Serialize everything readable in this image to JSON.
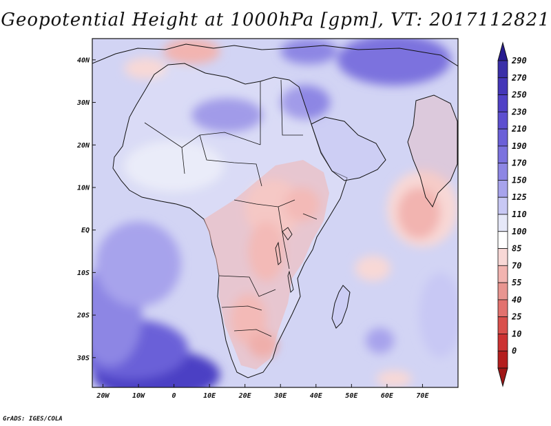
{
  "title": "Geopotential Height at 1000hPa [gpm], VT: 2017112821",
  "credit": "GrADS: IGES/COLA",
  "map": {
    "lon_range": [
      -23,
      80
    ],
    "lat_range": [
      -37,
      45
    ],
    "lat_ticks": [
      {
        "value": 40,
        "label": "40N"
      },
      {
        "value": 30,
        "label": "30N"
      },
      {
        "value": 20,
        "label": "20N"
      },
      {
        "value": 10,
        "label": "10N"
      },
      {
        "value": 0,
        "label": "EQ"
      },
      {
        "value": -10,
        "label": "10S"
      },
      {
        "value": -20,
        "label": "20S"
      },
      {
        "value": -30,
        "label": "30S"
      }
    ],
    "lon_ticks": [
      {
        "value": -20,
        "label": "20W"
      },
      {
        "value": -10,
        "label": "10W"
      },
      {
        "value": 0,
        "label": "0"
      },
      {
        "value": 10,
        "label": "10E"
      },
      {
        "value": 20,
        "label": "20E"
      },
      {
        "value": 30,
        "label": "30E"
      },
      {
        "value": 40,
        "label": "40E"
      },
      {
        "value": 50,
        "label": "50E"
      },
      {
        "value": 60,
        "label": "60E"
      },
      {
        "value": 70,
        "label": "70E"
      }
    ],
    "background_color": "#d2d4f4"
  },
  "colorbar": {
    "levels": [
      "290",
      "270",
      "250",
      "230",
      "210",
      "190",
      "170",
      "150",
      "125",
      "110",
      "100",
      "85",
      "70",
      "55",
      "40",
      "25",
      "10",
      "0"
    ],
    "colors": [
      "#3a2fa8",
      "#4436b8",
      "#5041c6",
      "#5d4fd0",
      "#6b60d8",
      "#7b72de",
      "#8d86e4",
      "#a7a3ec",
      "#c8c8f4",
      "#e6e8f8",
      "#ffffff",
      "#f8d8d6",
      "#f2b4b0",
      "#e89590",
      "#e2726e",
      "#d9504c",
      "#cc3232",
      "#b41e1e"
    ],
    "top_arrow_color": "#281c90",
    "bottom_arrow_color": "#a01616"
  },
  "field_blobs": [
    {
      "lon": -5,
      "lat": -34,
      "rx": 18,
      "ry": 6,
      "color": "#4b3fc4"
    },
    {
      "lon": -12,
      "lat": -28,
      "rx": 16,
      "ry": 7,
      "color": "#6b60d8"
    },
    {
      "lon": -18,
      "lat": -20,
      "rx": 9,
      "ry": 12,
      "color": "#8d86e4"
    },
    {
      "lon": -10,
      "lat": -8,
      "rx": 12,
      "ry": 10,
      "color": "#a7a3ec"
    },
    {
      "lon": 15,
      "lat": 27,
      "rx": 10,
      "ry": 4,
      "color": "#8d86e4"
    },
    {
      "lon": 37,
      "lat": 30,
      "rx": 7,
      "ry": 4,
      "color": "#8d86e4"
    },
    {
      "lon": 0,
      "lat": 15,
      "rx": 14,
      "ry": 6,
      "color": "#e6e8f8"
    },
    {
      "lon": 62,
      "lat": 40,
      "rx": 16,
      "ry": 6,
      "color": "#7b72de"
    },
    {
      "lon": 38,
      "lat": 42,
      "rx": 8,
      "ry": 3,
      "color": "#8d86e4"
    },
    {
      "lon": 5,
      "lat": 42,
      "rx": 8,
      "ry": 3,
      "color": "#f2b4b0"
    },
    {
      "lon": -8,
      "lat": 38,
      "rx": 6,
      "ry": 2.5,
      "color": "#f8d8d6"
    },
    {
      "lon": 28,
      "lat": 5,
      "rx": 8,
      "ry": 7,
      "color": "#f8d8d6"
    },
    {
      "lon": 36,
      "lat": 6,
      "rx": 5,
      "ry": 4,
      "color": "#f2b4b0"
    },
    {
      "lon": 26,
      "lat": -5,
      "rx": 5,
      "ry": 7,
      "color": "#f2b4b0"
    },
    {
      "lon": 21,
      "lat": -21,
      "rx": 5,
      "ry": 6,
      "color": "#f2b4b0"
    },
    {
      "lon": 25,
      "lat": -27,
      "rx": 4,
      "ry": 3,
      "color": "#e89590"
    },
    {
      "lon": 70,
      "lat": 5,
      "rx": 10,
      "ry": 9,
      "color": "#f8d8d6"
    },
    {
      "lon": 69,
      "lat": 4,
      "rx": 6,
      "ry": 6,
      "color": "#f2b4b0"
    },
    {
      "lon": 56,
      "lat": -9,
      "rx": 5,
      "ry": 3,
      "color": "#f8d8d6"
    },
    {
      "lon": 58,
      "lat": -26,
      "rx": 4,
      "ry": 3,
      "color": "#a7a3ec"
    },
    {
      "lon": 75,
      "lat": -20,
      "rx": 6,
      "ry": 10,
      "color": "#c8c8f4"
    },
    {
      "lon": 62,
      "lat": -35,
      "rx": 5,
      "ry": 2,
      "color": "#f8d8d6"
    }
  ]
}
